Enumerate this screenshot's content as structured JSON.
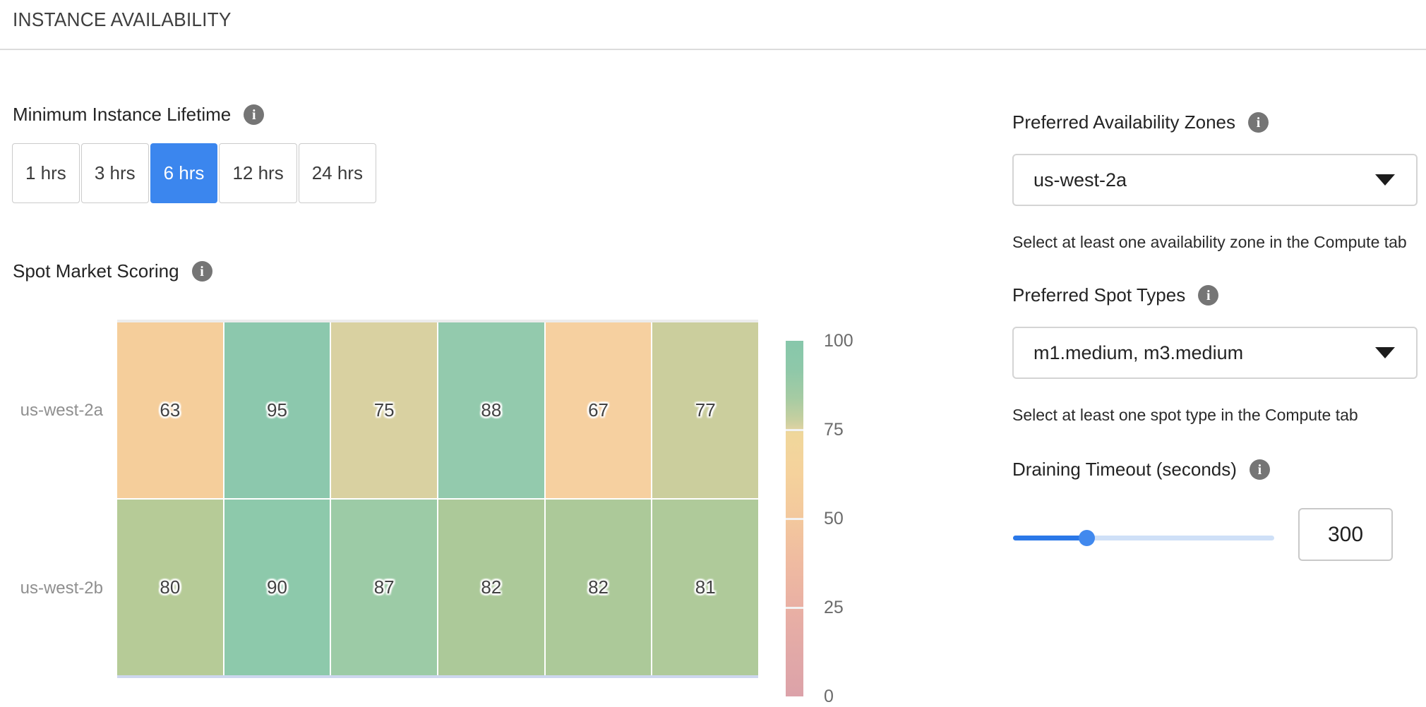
{
  "header": {
    "title": "INSTANCE AVAILABILITY"
  },
  "lifetime": {
    "label": "Minimum Instance Lifetime",
    "options": [
      {
        "label": "1 hrs",
        "selected": false
      },
      {
        "label": "3 hrs",
        "selected": false
      },
      {
        "label": "6 hrs",
        "selected": true
      },
      {
        "label": "12 hrs",
        "selected": false
      },
      {
        "label": "24 hrs",
        "selected": false
      }
    ]
  },
  "scoring": {
    "label": "Spot Market Scoring"
  },
  "chart_data": {
    "type": "heatmap",
    "title": "Spot Market Scoring",
    "rows": [
      "us-west-2a",
      "us-west-2b"
    ],
    "columns": [
      "",
      "",
      "",
      "",
      "",
      ""
    ],
    "values": [
      [
        63,
        95,
        75,
        88,
        67,
        77
      ],
      [
        80,
        90,
        87,
        82,
        82,
        81
      ]
    ],
    "cell_colors": [
      [
        "#F5CE9B",
        "#8CC8AD",
        "#D9D1A1",
        "#93CAAD",
        "#F6D0A0",
        "#CBCE9D"
      ],
      [
        "#B6CB97",
        "#8DC9AB",
        "#9CCBA6",
        "#ACC999",
        "#ACC999",
        "#AFCA9A"
      ]
    ],
    "value_range": [
      0,
      100
    ],
    "colorbar": {
      "ticks": [
        100,
        75,
        50,
        25,
        0
      ],
      "gradient": [
        {
          "pos": 0,
          "color": "#87C7AB"
        },
        {
          "pos": 8,
          "color": "#8EC8A9"
        },
        {
          "pos": 16,
          "color": "#A5CBA3"
        },
        {
          "pos": 22,
          "color": "#C5CFA0"
        },
        {
          "pos": 24.5,
          "color": "#DBD2A2"
        },
        {
          "pos": 26,
          "color": "#F0D79B"
        },
        {
          "pos": 37,
          "color": "#F5D29C"
        },
        {
          "pos": 50,
          "color": "#F3C89D"
        },
        {
          "pos": 63,
          "color": "#EFBAA1"
        },
        {
          "pos": 75,
          "color": "#E9B0A4"
        },
        {
          "pos": 87,
          "color": "#E2A9A7"
        },
        {
          "pos": 100,
          "color": "#DCA2A9"
        }
      ]
    }
  },
  "zones": {
    "label": "Preferred Availability Zones",
    "value": "us-west-2a",
    "helper": "Select at least one availability zone in the Compute tab"
  },
  "spot_types": {
    "label": "Preferred Spot Types",
    "value": "m1.medium, m3.medium",
    "helper": "Select at least one spot type in the Compute tab"
  },
  "draining": {
    "label": "Draining Timeout (seconds)",
    "value": "300",
    "slider_percent": 28
  },
  "colors": {
    "selected_button_blue": "#3B86EE",
    "slider_fill_blue": "#2A78E8",
    "slider_track_blue": "#CFE0F7",
    "slider_thumb_blue": "#4189EE",
    "info_icon_gray": "#757575"
  }
}
